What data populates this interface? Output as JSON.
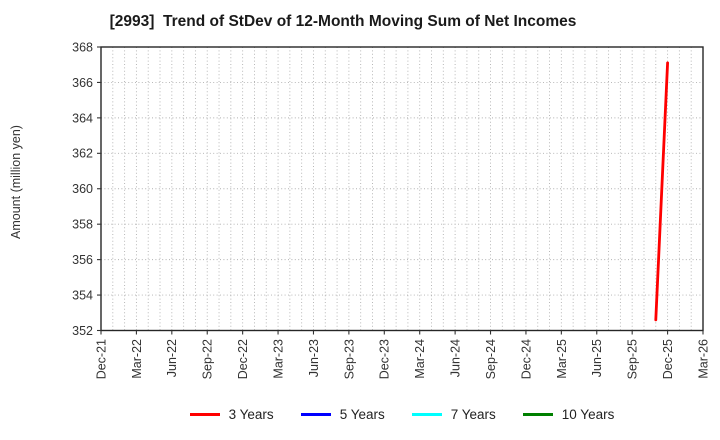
{
  "chart_data": {
    "type": "line",
    "title": "[2993]  Trend of StDev of 12-Month Moving Sum of Net Incomes",
    "ylabel": "Amount (million yen)",
    "ylim": [
      352,
      368
    ],
    "ytick_step": 2,
    "yticks": [
      352,
      354,
      356,
      358,
      360,
      362,
      364,
      366,
      368
    ],
    "x_ticks": [
      "Dec-21",
      "Mar-22",
      "Jun-22",
      "Sep-22",
      "Dec-22",
      "Mar-23",
      "Jun-23",
      "Sep-23",
      "Dec-23",
      "Mar-24",
      "Jun-24",
      "Sep-24",
      "Dec-24",
      "Mar-25",
      "Jun-25",
      "Sep-25",
      "Dec-25",
      "Mar-26"
    ],
    "months_per_tick": 3,
    "x_total_months": 51,
    "grid": {
      "style": "dotted",
      "color": "#b0b0b0",
      "vertical_every_months": 1,
      "horizontal_every_units": 2
    },
    "axis_color": "#262626",
    "tick_label_color": "#333333",
    "legend_position": "bottom",
    "series": [
      {
        "name": "3 Years",
        "color": "#ff0000",
        "points": [
          {
            "x_label": "Nov-25",
            "month_index": 47,
            "value": 352.6
          },
          {
            "x_label": "Dec-25",
            "month_index": 48,
            "value": 367.1
          }
        ]
      },
      {
        "name": "5 Years",
        "color": "#0000ff",
        "points": []
      },
      {
        "name": "7 Years",
        "color": "#00ffff",
        "points": []
      },
      {
        "name": "10 Years",
        "color": "#008000",
        "points": []
      }
    ]
  }
}
